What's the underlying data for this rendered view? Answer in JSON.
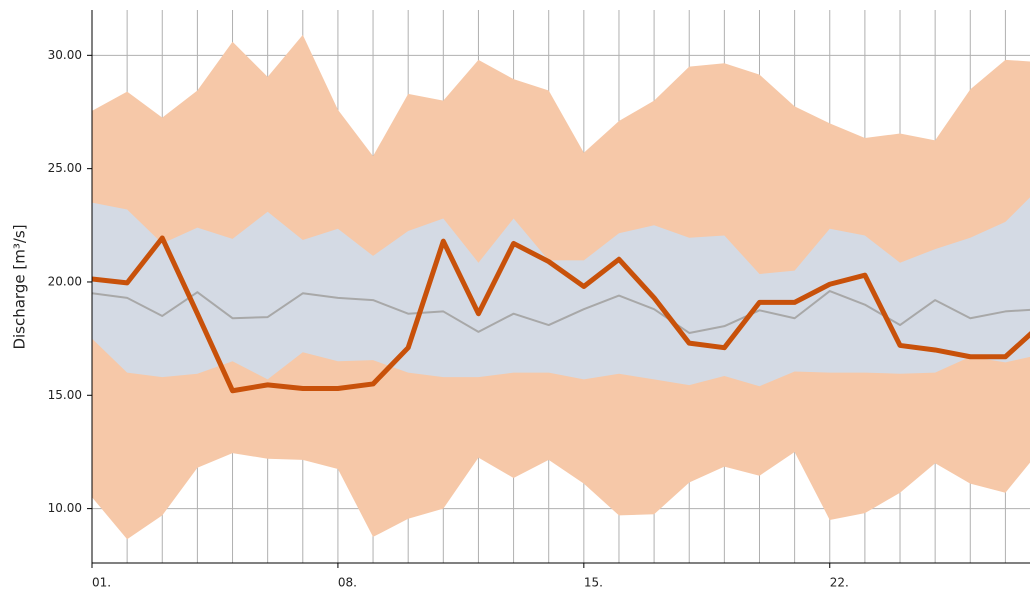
{
  "chart_data": {
    "type": "line",
    "ylabel": "Discharge [m³/s]",
    "x": [
      1,
      2,
      3,
      4,
      5,
      6,
      7,
      8,
      9,
      10,
      11,
      12,
      13,
      14,
      15,
      16,
      17,
      18,
      19,
      20,
      21,
      22,
      23,
      24,
      25,
      26,
      27,
      28
    ],
    "xlim": [
      1,
      27.7
    ],
    "xticks": [
      {
        "value": 1,
        "label": "01."
      },
      {
        "value": 8,
        "label": "08."
      },
      {
        "value": 15,
        "label": "15."
      },
      {
        "value": 22,
        "label": "22."
      }
    ],
    "ylim": [
      7.6,
      32
    ],
    "yticks": [
      {
        "value": 10,
        "label": "10.00"
      },
      {
        "value": 15,
        "label": "15.00"
      },
      {
        "value": 20,
        "label": "20.00"
      },
      {
        "value": 25,
        "label": "25.00"
      },
      {
        "value": 30,
        "label": "30.00"
      }
    ],
    "grid": true,
    "bands": [
      {
        "color": "#f6c8a8",
        "upper": [
          27.55,
          28.4,
          27.25,
          28.45,
          30.6,
          29.05,
          30.9,
          27.6,
          25.55,
          28.3,
          28.0,
          29.8,
          28.95,
          28.45,
          25.7,
          27.1,
          28.0,
          29.5,
          29.65,
          29.15,
          27.75,
          27.0,
          26.35,
          26.55,
          26.25,
          28.5,
          29.8,
          29.7
        ],
        "lower": [
          10.5,
          8.65,
          9.7,
          11.8,
          12.45,
          12.2,
          12.15,
          11.75,
          8.75,
          9.55,
          10.0,
          12.25,
          11.35,
          12.15,
          11.1,
          9.7,
          9.75,
          11.15,
          11.85,
          11.45,
          12.5,
          9.5,
          9.8,
          10.7,
          12.0,
          11.1,
          10.7,
          12.6
        ]
      },
      {
        "color": "#d4dae4",
        "upper": [
          23.5,
          23.2,
          21.7,
          22.4,
          21.9,
          23.1,
          21.85,
          22.35,
          21.15,
          22.25,
          22.8,
          20.85,
          22.8,
          20.95,
          20.95,
          22.15,
          22.5,
          21.95,
          22.05,
          20.35,
          20.5,
          22.35,
          22.05,
          20.85,
          21.45,
          21.95,
          22.65,
          24.2
        ],
        "lower": [
          17.5,
          16.0,
          15.8,
          15.95,
          16.5,
          15.7,
          16.9,
          16.5,
          16.55,
          16.0,
          15.8,
          15.8,
          16.0,
          16.0,
          15.7,
          15.95,
          15.7,
          15.45,
          15.85,
          15.4,
          16.05,
          16.0,
          16.0,
          15.95,
          16.0,
          16.7,
          16.45,
          16.8
        ]
      }
    ],
    "series": [
      {
        "color": "#a8a8a8",
        "width": 2,
        "values": [
          19.5,
          19.3,
          18.5,
          19.55,
          18.4,
          18.45,
          19.5,
          19.3,
          19.2,
          18.6,
          18.7,
          17.8,
          18.6,
          18.1,
          18.8,
          19.4,
          18.8,
          17.75,
          18.05,
          18.75,
          18.4,
          19.6,
          19.0,
          18.1,
          19.2,
          18.4,
          18.7,
          18.8
        ]
      },
      {
        "color": "#c8510a",
        "width": 5,
        "values": [
          20.13,
          19.96,
          21.94,
          18.6,
          15.2,
          15.46,
          15.3,
          15.3,
          15.5,
          17.1,
          21.8,
          18.6,
          21.7,
          20.9,
          19.8,
          21.0,
          19.3,
          17.3,
          17.1,
          19.1,
          19.1,
          19.9,
          20.3,
          17.2,
          17.0,
          16.7,
          16.7,
          18.1
        ]
      }
    ]
  }
}
